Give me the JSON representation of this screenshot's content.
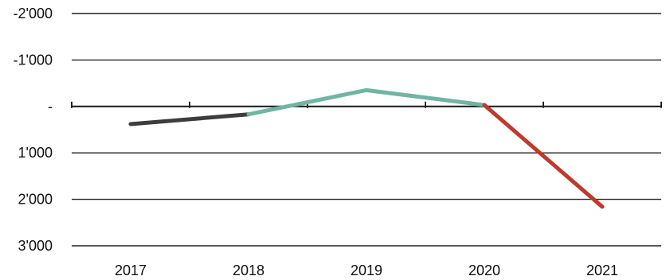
{
  "chart_data": {
    "type": "line",
    "categories": [
      "2017",
      "2018",
      "2019",
      "2020",
      "2021"
    ],
    "y_axis": {
      "inverted": true,
      "ylim": [
        -2000,
        3000
      ],
      "ticks": [
        -2000,
        -1000,
        0,
        1000,
        2000,
        3000
      ],
      "tick_labels": [
        "-2'000",
        "-1'000",
        "-",
        "1'000",
        "2'000",
        "3'000"
      ]
    },
    "grid": true,
    "segments": [
      {
        "from": "2017",
        "to": "2018",
        "color": "#3d3d3b",
        "y": [
          380,
          170
        ]
      },
      {
        "from": "2018",
        "to": "2019",
        "color": "#6fb5a4",
        "y": [
          170,
          -350
        ]
      },
      {
        "from": "2019",
        "to": "2020",
        "color": "#6fb5a4",
        "y": [
          -350,
          -30
        ]
      },
      {
        "from": "2020",
        "to": "2021",
        "color": "#c0392b",
        "y": [
          -30,
          2160
        ]
      }
    ],
    "values": [
      380,
      170,
      -350,
      -30,
      2160
    ],
    "colors": {
      "grid": "#222222",
      "axis": "#222222"
    }
  }
}
